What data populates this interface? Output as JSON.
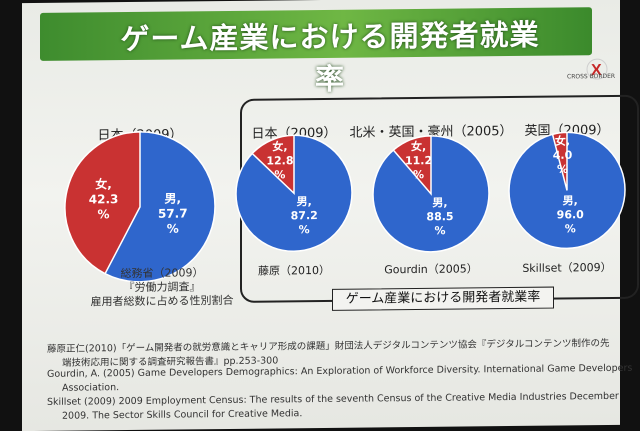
{
  "slide": {
    "title": "ゲーム産業における開発者就業率",
    "logo_text": "CROSS BORDER",
    "logo_mark": "X",
    "group_label": "ゲーム産業における開発者就業率",
    "note_lines": [
      "総務省（2009）",
      "『労働力調査』",
      "雇用者総数に占める性別割合"
    ],
    "references": [
      "藤原正仁(2010)「ゲーム開発者の就労意識とキャリア形成の課題」財団法人デジタルコンテンツ協会『デジタルコンテンツ制作の先",
      "端技術応用に関する調査研究報告書』pp.253-300",
      "Gourdin, A. (2005) Game Developers Demographics: An Exploration of Workforce Diversity. International Game Developers",
      "Association.",
      "Skillset (2009) 2009 Employment Census: The results of the seventh Census of the Creative Media Industries December",
      "2009. The Sector Skills Council for Creative Media."
    ],
    "colors": {
      "male": "#2f66cc",
      "female": "#c93232",
      "title_bg": "#5aa83a"
    }
  },
  "chart_data": [
    {
      "type": "pie",
      "title": "日本（2009）",
      "source": "",
      "slices": [
        {
          "name": "女,",
          "value": 42.3
        },
        {
          "name": "男,",
          "value": 57.7
        }
      ],
      "labels": {
        "female": [
          "女,",
          "42.3",
          "%"
        ],
        "male": [
          "男,",
          "57.7",
          "%"
        ]
      }
    },
    {
      "type": "pie",
      "title": "日本（2009）",
      "source": "藤原（2010）",
      "slices": [
        {
          "name": "女,",
          "value": 12.8
        },
        {
          "name": "男,",
          "value": 87.2
        }
      ],
      "labels": {
        "female": [
          "女,",
          "12.8",
          "%"
        ],
        "male": [
          "男,",
          "87.2",
          "%"
        ]
      }
    },
    {
      "type": "pie",
      "title": "北米・英国・豪州（2005）",
      "source": "Gourdin（2005）",
      "slices": [
        {
          "name": "女,",
          "value": 11.2
        },
        {
          "name": "男,",
          "value": 88.5
        }
      ],
      "labels": {
        "female": [
          "女,",
          "11.2",
          "%"
        ],
        "male": [
          "男,",
          "88.5",
          "%"
        ]
      }
    },
    {
      "type": "pie",
      "title": "英国（2009）",
      "source": "Skillset（2009）",
      "slices": [
        {
          "name": "女,",
          "value": 4.0
        },
        {
          "name": "男,",
          "value": 96.0
        }
      ],
      "labels": {
        "female": [
          "女,",
          "4.0",
          "%"
        ],
        "male": [
          "男,",
          "96.0",
          "%"
        ]
      }
    }
  ]
}
